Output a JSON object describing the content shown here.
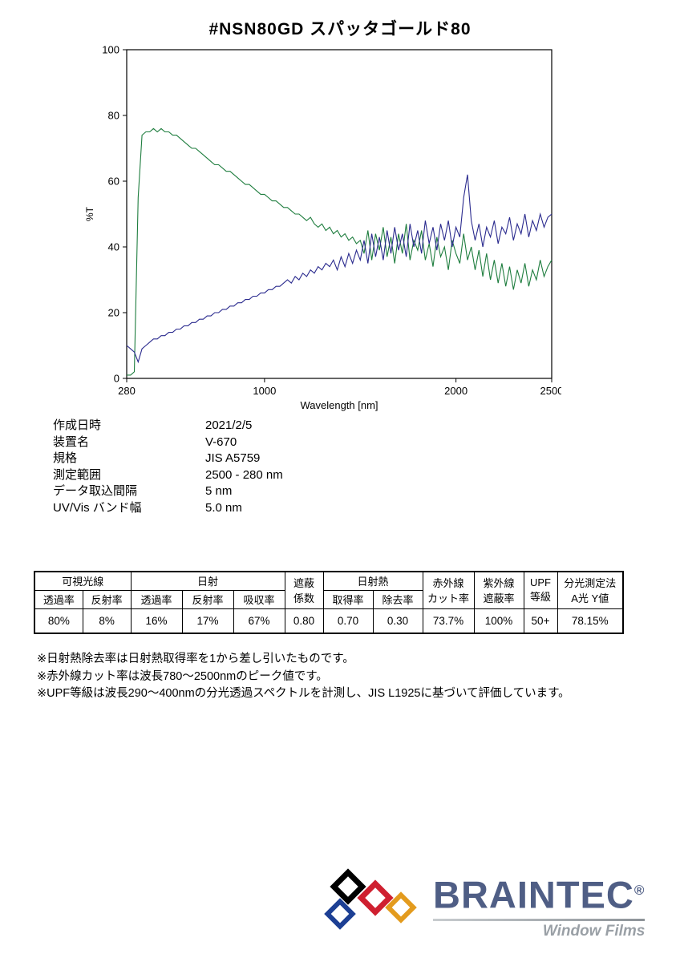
{
  "page": {
    "title": "#NSN80GD  スパッタゴールド80"
  },
  "chart_data": {
    "type": "line",
    "title": "",
    "xlabel": "Wavelength [nm]",
    "ylabel": "%T",
    "xlim": [
      280,
      2500
    ],
    "ylim": [
      0,
      100
    ],
    "x_ticks": [
      280,
      1000,
      2000,
      2500
    ],
    "y_ticks": [
      0,
      20,
      40,
      60,
      80,
      100
    ],
    "grid": false,
    "legend": "none",
    "x": [
      280,
      300,
      320,
      340,
      360,
      380,
      400,
      420,
      440,
      460,
      480,
      500,
      520,
      540,
      560,
      580,
      600,
      620,
      640,
      660,
      680,
      700,
      720,
      740,
      760,
      780,
      800,
      820,
      840,
      860,
      880,
      900,
      920,
      940,
      960,
      980,
      1000,
      1020,
      1040,
      1060,
      1080,
      1100,
      1120,
      1140,
      1160,
      1180,
      1200,
      1220,
      1240,
      1260,
      1280,
      1300,
      1320,
      1340,
      1360,
      1380,
      1400,
      1420,
      1440,
      1460,
      1480,
      1500,
      1520,
      1540,
      1560,
      1580,
      1600,
      1620,
      1640,
      1660,
      1680,
      1700,
      1720,
      1740,
      1760,
      1780,
      1800,
      1820,
      1840,
      1860,
      1880,
      1900,
      1920,
      1940,
      1960,
      1980,
      2000,
      2020,
      2040,
      2060,
      2080,
      2100,
      2120,
      2140,
      2160,
      2180,
      2200,
      2220,
      2240,
      2260,
      2280,
      2300,
      2320,
      2340,
      2360,
      2380,
      2400,
      2420,
      2440,
      2460,
      2480,
      2500
    ],
    "series": [
      {
        "name": "transmittance-green",
        "color": "#1e7d3e",
        "values": [
          1,
          1,
          2,
          55,
          74,
          75,
          75,
          76,
          75,
          76,
          75,
          75,
          74,
          74,
          73,
          72,
          71,
          70,
          70,
          69,
          68,
          67,
          66,
          65,
          65,
          64,
          63,
          63,
          62,
          61,
          60,
          59,
          59,
          58,
          57,
          56,
          56,
          55,
          54,
          54,
          53,
          52,
          52,
          51,
          50,
          50,
          49,
          48,
          49,
          47,
          46,
          47,
          45,
          46,
          44,
          45,
          43,
          44,
          42,
          43,
          41,
          42,
          38,
          45,
          36,
          44,
          39,
          46,
          37,
          43,
          35,
          44,
          38,
          47,
          36,
          42,
          39,
          45,
          36,
          41,
          34,
          43,
          37,
          40,
          33,
          42,
          38,
          35,
          44,
          36,
          40,
          33,
          39,
          31,
          38,
          30,
          36,
          29,
          35,
          28,
          34,
          27,
          33,
          29,
          35,
          28,
          33,
          30,
          36,
          31,
          34,
          36
        ]
      },
      {
        "name": "reflectance-navy",
        "color": "#2a2a8e",
        "values": [
          10,
          9,
          8,
          5,
          9,
          10,
          11,
          12,
          12,
          13,
          13,
          14,
          14,
          15,
          15,
          16,
          16,
          17,
          17,
          18,
          18,
          19,
          19,
          20,
          20,
          21,
          21,
          22,
          22,
          23,
          23,
          24,
          24,
          25,
          25,
          26,
          26,
          27,
          27,
          28,
          28,
          29,
          30,
          29,
          31,
          30,
          32,
          31,
          33,
          32,
          34,
          33,
          35,
          34,
          36,
          33,
          37,
          34,
          38,
          35,
          39,
          36,
          42,
          35,
          44,
          37,
          43,
          36,
          45,
          38,
          46,
          39,
          44,
          37,
          47,
          40,
          45,
          38,
          48,
          41,
          46,
          39,
          47,
          42,
          48,
          40,
          46,
          43,
          55,
          62,
          48,
          42,
          47,
          40,
          46,
          43,
          48,
          41,
          46,
          44,
          49,
          42,
          47,
          44,
          50,
          43,
          48,
          45,
          50,
          46,
          49,
          50
        ]
      }
    ]
  },
  "metadata": {
    "rows": [
      {
        "label": "作成日時",
        "value": "2021/2/5"
      },
      {
        "label": "装置名",
        "value": "V-670"
      },
      {
        "label": "規格",
        "value": "JIS A5759"
      },
      {
        "label": "測定範囲",
        "value": "2500 - 280 nm"
      },
      {
        "label": "データ取込間隔",
        "value": "5 nm"
      },
      {
        "label": "UV/Vis バンド幅",
        "value": "5.0 nm"
      }
    ]
  },
  "results_table": {
    "h_visible": "可視光線",
    "h_solar": "日射",
    "h_shading_1": "遮蔽",
    "h_shading_2": "係数",
    "h_solar_heat": "日射熱",
    "h_ir_1": "赤外線",
    "h_ir_2": "カット率",
    "h_uv_1": "紫外線",
    "h_uv_2": "遮蔽率",
    "h_upf_1": "UPF",
    "h_upf_2": "等級",
    "h_spectro_1": "分光測定法",
    "h_spectro_2": "A光 Y値",
    "sub": [
      "透過率",
      "反射率",
      "透過率",
      "反射率",
      "吸収率",
      "取得率",
      "除去率"
    ],
    "values": [
      "80%",
      "8%",
      "16%",
      "17%",
      "67%",
      "0.80",
      "0.70",
      "0.30",
      "73.7%",
      "100%",
      "50+",
      "78.15%"
    ]
  },
  "notes": [
    "※日射熱除去率は日射熱取得率を1から差し引いたものです。",
    "※赤外線カット率は波長780〜2500nmのピーク値です。",
    "※UPF等級は波長290〜400nmの分光透過スペクトルを計測し、JIS L1925に基づいて評価しています。"
  ],
  "logo": {
    "brand": "BRAINTEC",
    "registered": "®",
    "tagline": "Window Films",
    "brand_color": "#4f5e85",
    "diamond_colors": [
      "#000000",
      "#1c3f94",
      "#cf2030",
      "#e39b1e"
    ]
  }
}
